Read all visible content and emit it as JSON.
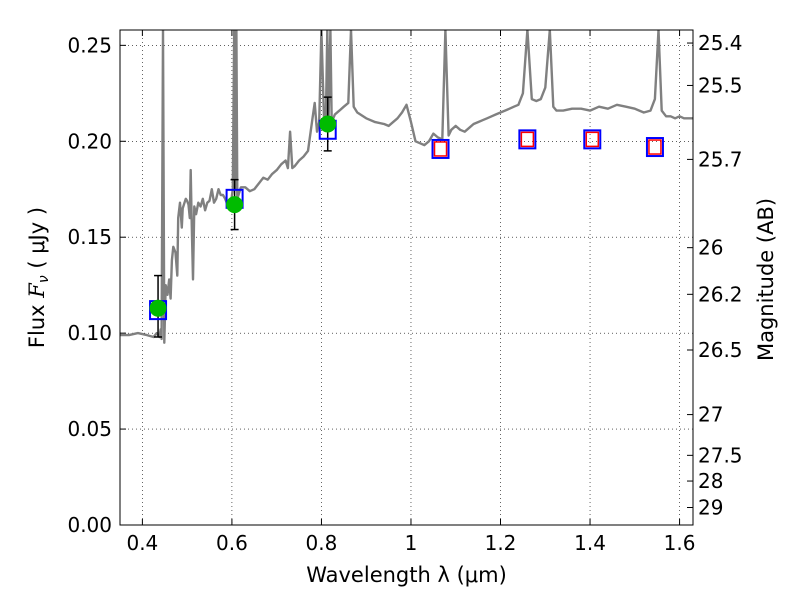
{
  "chart_data": {
    "type": "scatter",
    "title": "",
    "xlabel": "Wavelength  λ (μm)",
    "ylabel": "Flux  F_ν  ( μJy )",
    "ylabel_parts": {
      "pre": "Flux  ",
      "sym": "F",
      "sub": "ν",
      "post": "  ( μJy )"
    },
    "y2label": "Magnitude (AB)",
    "xlim": [
      0.35,
      1.63
    ],
    "ylim": [
      0.0,
      0.258
    ],
    "grid": true,
    "xticks": [
      0.4,
      0.6,
      0.8,
      1.0,
      1.2,
      1.4,
      1.6
    ],
    "xtick_labels": [
      "0.4",
      "0.6",
      "0.8",
      "1",
      "1.2",
      "1.4",
      "1.6"
    ],
    "yticks": [
      0.0,
      0.05,
      0.1,
      0.15,
      0.2,
      0.25
    ],
    "ytick_labels": [
      "0.00",
      "0.05",
      "0.10",
      "0.15",
      "0.20",
      "0.25"
    ],
    "mag_ticks": [
      25.4,
      25.5,
      25.7,
      26,
      26.2,
      26.5,
      27,
      27.5,
      28,
      29
    ],
    "mag_tick_labels": [
      "25.4",
      "25.5",
      "25.7",
      "26",
      "26.2",
      "26.5",
      "27",
      "27.5",
      "28",
      "29"
    ],
    "colors": {
      "spectrum": "#808080",
      "observed": "#00bb00",
      "model": "#0000ff",
      "upper_limit": "#ff0000",
      "errorbar": "#000000"
    },
    "series": [
      {
        "name": "Model spectrum",
        "type": "line",
        "points": [
          [
            0.35,
            0.099
          ],
          [
            0.37,
            0.099
          ],
          [
            0.39,
            0.1
          ],
          [
            0.41,
            0.099
          ],
          [
            0.425,
            0.098
          ],
          [
            0.432,
            0.1
          ],
          [
            0.438,
            0.098
          ],
          [
            0.441,
            0.102
          ],
          [
            0.443,
            0.097
          ],
          [
            0.446,
            0.258
          ],
          [
            0.449,
            0.095
          ],
          [
            0.452,
            0.125
          ],
          [
            0.456,
            0.12
          ],
          [
            0.46,
            0.128
          ],
          [
            0.463,
            0.118
          ],
          [
            0.466,
            0.138
          ],
          [
            0.469,
            0.145
          ],
          [
            0.474,
            0.142
          ],
          [
            0.478,
            0.13
          ],
          [
            0.48,
            0.16
          ],
          [
            0.484,
            0.168
          ],
          [
            0.488,
            0.155
          ],
          [
            0.49,
            0.165
          ],
          [
            0.494,
            0.168
          ],
          [
            0.497,
            0.17
          ],
          [
            0.5,
            0.169
          ],
          [
            0.503,
            0.167
          ],
          [
            0.506,
            0.16
          ],
          [
            0.508,
            0.185
          ],
          [
            0.51,
            0.16
          ],
          [
            0.513,
            0.128
          ],
          [
            0.516,
            0.166
          ],
          [
            0.52,
            0.162
          ],
          [
            0.525,
            0.168
          ],
          [
            0.53,
            0.166
          ],
          [
            0.535,
            0.17
          ],
          [
            0.54,
            0.164
          ],
          [
            0.545,
            0.168
          ],
          [
            0.55,
            0.169
          ],
          [
            0.555,
            0.175
          ],
          [
            0.56,
            0.168
          ],
          [
            0.565,
            0.17
          ],
          [
            0.57,
            0.175
          ],
          [
            0.575,
            0.172
          ],
          [
            0.58,
            0.172
          ],
          [
            0.585,
            0.17
          ],
          [
            0.59,
            0.167
          ],
          [
            0.595,
            0.168
          ],
          [
            0.598,
            0.168
          ],
          [
            0.602,
            0.175
          ],
          [
            0.605,
            0.258
          ],
          [
            0.607,
            0.175
          ],
          [
            0.61,
            0.258
          ],
          [
            0.612,
            0.17
          ],
          [
            0.62,
            0.176
          ],
          [
            0.63,
            0.176
          ],
          [
            0.64,
            0.174
          ],
          [
            0.65,
            0.175
          ],
          [
            0.66,
            0.178
          ],
          [
            0.67,
            0.181
          ],
          [
            0.68,
            0.18
          ],
          [
            0.69,
            0.183
          ],
          [
            0.7,
            0.185
          ],
          [
            0.71,
            0.188
          ],
          [
            0.72,
            0.19
          ],
          [
            0.725,
            0.186
          ],
          [
            0.73,
            0.205
          ],
          [
            0.735,
            0.186
          ],
          [
            0.74,
            0.187
          ],
          [
            0.75,
            0.19
          ],
          [
            0.76,
            0.192
          ],
          [
            0.77,
            0.195
          ],
          [
            0.78,
            0.212
          ],
          [
            0.785,
            0.22
          ],
          [
            0.79,
            0.205
          ],
          [
            0.795,
            0.21
          ],
          [
            0.8,
            0.258
          ],
          [
            0.806,
            0.21
          ],
          [
            0.81,
            0.212
          ],
          [
            0.813,
            0.258
          ],
          [
            0.816,
            0.212
          ],
          [
            0.82,
            0.258
          ],
          [
            0.823,
            0.21
          ],
          [
            0.83,
            0.214
          ],
          [
            0.84,
            0.216
          ],
          [
            0.85,
            0.218
          ],
          [
            0.86,
            0.22
          ],
          [
            0.866,
            0.258
          ],
          [
            0.872,
            0.218
          ],
          [
            0.88,
            0.215
          ],
          [
            0.9,
            0.212
          ],
          [
            0.92,
            0.21
          ],
          [
            0.94,
            0.209
          ],
          [
            0.95,
            0.208
          ],
          [
            0.96,
            0.21
          ],
          [
            0.97,
            0.212
          ],
          [
            0.98,
            0.215
          ],
          [
            0.99,
            0.219
          ],
          [
            1.0,
            0.21
          ],
          [
            1.01,
            0.2
          ],
          [
            1.02,
            0.199
          ],
          [
            1.03,
            0.198
          ],
          [
            1.04,
            0.2
          ],
          [
            1.05,
            0.204
          ],
          [
            1.06,
            0.202
          ],
          [
            1.07,
            0.201
          ],
          [
            1.077,
            0.258
          ],
          [
            1.084,
            0.203
          ],
          [
            1.09,
            0.206
          ],
          [
            1.1,
            0.208
          ],
          [
            1.11,
            0.206
          ],
          [
            1.12,
            0.205
          ],
          [
            1.13,
            0.207
          ],
          [
            1.14,
            0.209
          ],
          [
            1.15,
            0.21
          ],
          [
            1.16,
            0.211
          ],
          [
            1.17,
            0.212
          ],
          [
            1.18,
            0.213
          ],
          [
            1.19,
            0.214
          ],
          [
            1.2,
            0.215
          ],
          [
            1.21,
            0.216
          ],
          [
            1.22,
            0.217
          ],
          [
            1.23,
            0.218
          ],
          [
            1.24,
            0.219
          ],
          [
            1.25,
            0.225
          ],
          [
            1.26,
            0.258
          ],
          [
            1.27,
            0.222
          ],
          [
            1.28,
            0.221
          ],
          [
            1.29,
            0.222
          ],
          [
            1.3,
            0.228
          ],
          [
            1.31,
            0.258
          ],
          [
            1.318,
            0.218
          ],
          [
            1.325,
            0.216
          ],
          [
            1.34,
            0.216
          ],
          [
            1.36,
            0.217
          ],
          [
            1.38,
            0.217
          ],
          [
            1.4,
            0.216
          ],
          [
            1.42,
            0.218
          ],
          [
            1.44,
            0.217
          ],
          [
            1.46,
            0.219
          ],
          [
            1.48,
            0.218
          ],
          [
            1.5,
            0.217
          ],
          [
            1.52,
            0.215
          ],
          [
            1.535,
            0.216
          ],
          [
            1.545,
            0.222
          ],
          [
            1.553,
            0.258
          ],
          [
            1.56,
            0.216
          ],
          [
            1.57,
            0.213
          ],
          [
            1.58,
            0.213
          ],
          [
            1.59,
            0.212
          ],
          [
            1.6,
            0.213
          ],
          [
            1.61,
            0.212
          ],
          [
            1.63,
            0.212
          ]
        ]
      },
      {
        "name": "Observed photometry",
        "type": "scatter",
        "points": [
          {
            "x": 0.435,
            "y": 0.113,
            "yerr_low": 0.098,
            "yerr_high": 0.13
          },
          {
            "x": 0.606,
            "y": 0.167,
            "yerr_low": 0.154,
            "yerr_high": 0.18
          },
          {
            "x": 0.814,
            "y": 0.209,
            "yerr_low": 0.195,
            "yerr_high": 0.223
          }
        ]
      },
      {
        "name": "Model photometry",
        "type": "scatter",
        "points": [
          {
            "x": 0.435,
            "y": 0.112
          },
          {
            "x": 0.606,
            "y": 0.17
          },
          {
            "x": 0.814,
            "y": 0.206
          },
          {
            "x": 1.066,
            "y": 0.196
          },
          {
            "x": 1.26,
            "y": 0.201
          },
          {
            "x": 1.405,
            "y": 0.201
          },
          {
            "x": 1.545,
            "y": 0.197
          }
        ]
      },
      {
        "name": "Upper limits",
        "type": "scatter",
        "points": [
          {
            "x": 1.066,
            "y": 0.196
          },
          {
            "x": 1.26,
            "y": 0.201
          },
          {
            "x": 1.405,
            "y": 0.201
          },
          {
            "x": 1.545,
            "y": 0.197
          }
        ]
      }
    ]
  }
}
